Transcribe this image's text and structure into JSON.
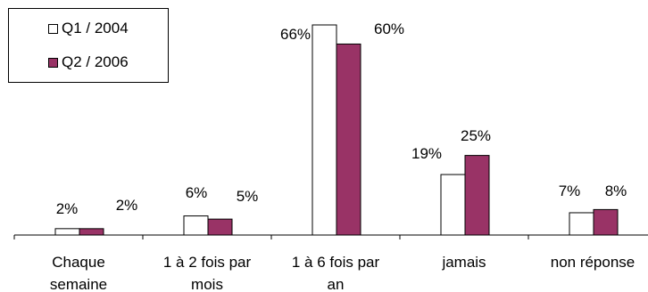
{
  "chart_data": {
    "type": "bar",
    "categories": [
      [
        "Chaque",
        "semaine"
      ],
      [
        "1 à 2 fois par",
        "mois"
      ],
      [
        "1 à 6 fois par",
        "an"
      ],
      [
        "jamais"
      ],
      [
        "non réponse"
      ]
    ],
    "series": [
      {
        "name": "Q1 / 2004",
        "values": [
          2,
          6,
          66,
          19,
          7
        ],
        "labels": [
          "2%",
          "6%",
          "66%",
          "19%",
          "7%"
        ],
        "color": "#ffffff"
      },
      {
        "name": "Q2 / 2006",
        "values": [
          2,
          5,
          60,
          25,
          8
        ],
        "labels": [
          "2%",
          "5%",
          "60%",
          "25%",
          "8%"
        ],
        "color": "#993366"
      }
    ],
    "ylim": [
      0,
      66
    ],
    "grid": false,
    "legend_position": "top-left"
  }
}
